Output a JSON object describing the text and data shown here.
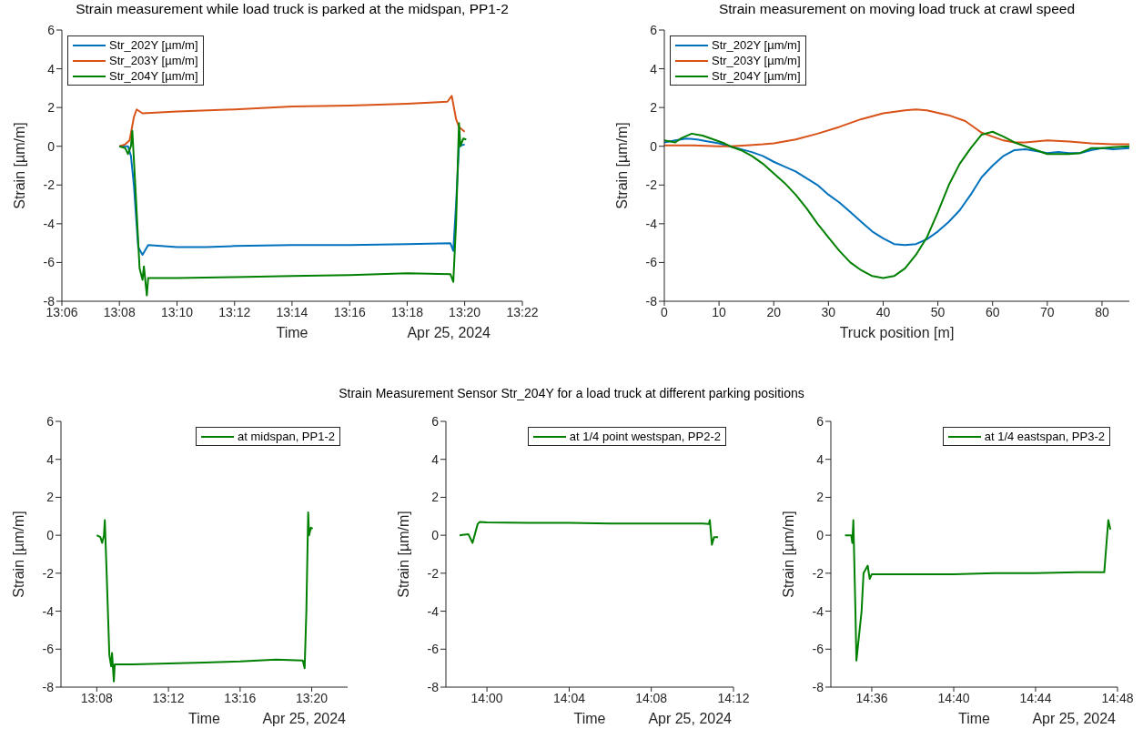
{
  "chart_data": [
    {
      "type": "line",
      "title": "Strain measurement while load truck is parked at the midspan, PP1-2",
      "xlabel": "Time",
      "ylabel": "Strain [µm/m]",
      "annotations": [
        "Apr 25, 2024"
      ],
      "legend": "top left",
      "xlim": [
        13.1,
        13.3667
      ],
      "xticks": [
        {
          "value": 13.1,
          "label": "13:06"
        },
        {
          "value": 13.1333,
          "label": "13:08"
        },
        {
          "value": 13.1667,
          "label": "13:10"
        },
        {
          "value": 13.2,
          "label": "13:12"
        },
        {
          "value": 13.2333,
          "label": "13:14"
        },
        {
          "value": 13.2667,
          "label": "13:16"
        },
        {
          "value": 13.3,
          "label": "13:18"
        },
        {
          "value": 13.3333,
          "label": "13:20"
        },
        {
          "value": 13.3667,
          "label": "13:22"
        }
      ],
      "ylim": [
        -8,
        6
      ],
      "yticks": [
        -8,
        -6,
        -4,
        -2,
        0,
        2,
        4,
        6
      ],
      "series": [
        {
          "name": "Str_202Y [µm/m]",
          "color": "#0072bd",
          "x": [
            13.1333,
            13.1383,
            13.14,
            13.1417,
            13.1442,
            13.1467,
            13.15,
            13.1667,
            13.1833,
            13.2,
            13.2333,
            13.2667,
            13.3,
            13.325,
            13.3267,
            13.3283,
            13.33,
            13.3333
          ],
          "values": [
            0,
            0,
            -0.5,
            -2,
            -5.2,
            -5.6,
            -5.1,
            -5.2,
            -5.2,
            -5.15,
            -5.1,
            -5.1,
            -5.05,
            -5,
            -5.4,
            -3,
            0,
            0.1
          ]
        },
        {
          "name": "Str_203Y [µm/m]",
          "color": "#d95319",
          "x": [
            13.1333,
            13.1367,
            13.1392,
            13.1417,
            13.1433,
            13.1467,
            13.1667,
            13.2,
            13.2333,
            13.2667,
            13.3,
            13.3233,
            13.3258,
            13.3283,
            13.33,
            13.3333
          ],
          "values": [
            0,
            0.1,
            0.3,
            1.5,
            1.9,
            1.7,
            1.8,
            1.9,
            2.05,
            2.1,
            2.2,
            2.3,
            2.6,
            1.4,
            1,
            0.75
          ]
        },
        {
          "name": "Str_204Y [µm/m]",
          "color": "#008000",
          "x": [
            13.1333,
            13.1367,
            13.1383,
            13.14,
            13.1408,
            13.1425,
            13.145,
            13.1467,
            13.1475,
            13.1492,
            13.15,
            13.1667,
            13.2,
            13.2333,
            13.2667,
            13.3,
            13.325,
            13.3267,
            13.3283,
            13.33,
            13.3308,
            13.3325,
            13.3342
          ],
          "values": [
            0,
            -0.1,
            -0.4,
            0,
            0.8,
            -2,
            -6.3,
            -6.9,
            -6.2,
            -7.7,
            -6.8,
            -6.8,
            -6.75,
            -6.7,
            -6.65,
            -6.55,
            -6.6,
            -7,
            -4,
            1.2,
            0,
            0.4,
            0.35
          ]
        }
      ]
    },
    {
      "type": "line",
      "title": "Strain measurement on moving load truck at crawl speed",
      "xlabel": "Truck position [m]",
      "ylabel": "Strain [µm/m]",
      "legend": "top left",
      "xlim": [
        0,
        85
      ],
      "xticks": [
        0,
        10,
        20,
        30,
        40,
        50,
        60,
        70,
        80
      ],
      "ylim": [
        -8,
        6
      ],
      "yticks": [
        -8,
        -6,
        -4,
        -2,
        0,
        2,
        4,
        6
      ],
      "series": [
        {
          "name": "Str_202Y [µm/m]",
          "color": "#0072bd",
          "x": [
            0,
            2,
            4,
            6,
            8,
            10,
            12,
            14,
            16,
            18,
            20,
            22,
            24,
            26,
            28,
            30,
            32,
            34,
            36,
            38,
            40,
            42,
            44,
            46,
            48,
            50,
            52,
            54,
            56,
            58,
            60,
            62,
            64,
            66,
            68,
            70,
            72,
            74,
            76,
            78,
            80,
            82,
            85
          ],
          "values": [
            0.2,
            0.3,
            0.4,
            0.35,
            0.25,
            0.15,
            0,
            -0.15,
            -0.3,
            -0.5,
            -0.8,
            -1.05,
            -1.3,
            -1.65,
            -2,
            -2.5,
            -2.9,
            -3.4,
            -3.9,
            -4.4,
            -4.75,
            -5.05,
            -5.1,
            -5.05,
            -4.8,
            -4.4,
            -3.9,
            -3.3,
            -2.5,
            -1.6,
            -1,
            -0.5,
            -0.2,
            -0.15,
            -0.25,
            -0.35,
            -0.3,
            -0.35,
            -0.35,
            -0.2,
            -0.1,
            -0.15,
            -0.1
          ]
        },
        {
          "name": "Str_203Y [µm/m]",
          "color": "#d95319",
          "x": [
            0,
            5,
            10,
            12,
            15,
            18,
            20,
            24,
            28,
            32,
            36,
            40,
            44,
            46,
            48,
            52,
            55,
            57,
            58,
            60,
            62,
            64,
            66,
            70,
            74,
            78,
            82,
            85
          ],
          "values": [
            0.05,
            0.05,
            0,
            0,
            0.05,
            0.1,
            0.15,
            0.35,
            0.65,
            1,
            1.4,
            1.7,
            1.85,
            1.9,
            1.85,
            1.6,
            1.3,
            0.9,
            0.7,
            0.5,
            0.3,
            0.2,
            0.2,
            0.3,
            0.25,
            0.15,
            0.1,
            0.1
          ]
        },
        {
          "name": "Str_204Y [µm/m]",
          "color": "#008000",
          "x": [
            0,
            2,
            3,
            5,
            7,
            9,
            11,
            12,
            14,
            16,
            18,
            20,
            22,
            24,
            26,
            28,
            30,
            32,
            34,
            36,
            38,
            40,
            42,
            44,
            46,
            48,
            50,
            52,
            54,
            56,
            58,
            60,
            62,
            64,
            66,
            68,
            70,
            72,
            74,
            76,
            78,
            80,
            82,
            85
          ],
          "values": [
            0.3,
            0.2,
            0.4,
            0.65,
            0.55,
            0.35,
            0.15,
            0,
            -0.2,
            -0.5,
            -0.9,
            -1.4,
            -1.9,
            -2.5,
            -3.2,
            -4,
            -4.7,
            -5.4,
            -6,
            -6.4,
            -6.7,
            -6.8,
            -6.7,
            -6.3,
            -5.6,
            -4.7,
            -3.4,
            -2,
            -0.9,
            -0.1,
            0.6,
            0.75,
            0.5,
            0.2,
            0,
            -0.2,
            -0.4,
            -0.4,
            -0.4,
            -0.35,
            -0.1,
            -0.1,
            -0.05,
            0
          ]
        }
      ]
    },
    {
      "type": "other",
      "title": "Strain Measurement Sensor Str_204Y for a load truck at different parking positions"
    },
    {
      "type": "line",
      "xlabel": "Time",
      "ylabel": "Strain [µm/m]",
      "annotations": [
        "Apr 25, 2024"
      ],
      "legend": "top right",
      "xlim": [
        13.1,
        13.3667
      ],
      "xticks": [
        {
          "value": 13.1333,
          "label": "13:08"
        },
        {
          "value": 13.2,
          "label": "13:12"
        },
        {
          "value": 13.2667,
          "label": "13:16"
        },
        {
          "value": 13.3333,
          "label": "13:20"
        }
      ],
      "ylim": [
        -8,
        6
      ],
      "yticks": [
        -8,
        -6,
        -4,
        -2,
        0,
        2,
        4,
        6
      ],
      "series": [
        {
          "name": "at midspan, PP1-2",
          "color": "#008000",
          "x": [
            13.1333,
            13.1367,
            13.1383,
            13.14,
            13.1408,
            13.1425,
            13.145,
            13.1467,
            13.1475,
            13.1492,
            13.15,
            13.1667,
            13.2,
            13.2333,
            13.2667,
            13.3,
            13.325,
            13.3267,
            13.3283,
            13.33,
            13.3308,
            13.3325,
            13.3342
          ],
          "values": [
            0,
            -0.1,
            -0.4,
            0,
            0.8,
            -2,
            -6.3,
            -6.9,
            -6.2,
            -7.7,
            -6.8,
            -6.8,
            -6.75,
            -6.7,
            -6.65,
            -6.55,
            -6.6,
            -7,
            -4,
            1.2,
            0,
            0.4,
            0.35
          ]
        }
      ]
    },
    {
      "type": "line",
      "xlabel": "Time",
      "ylabel": "Strain [µm/m]",
      "annotations": [
        "Apr 25, 2024"
      ],
      "legend": "top right",
      "xlim": [
        13.9667,
        14.2
      ],
      "xticks": [
        {
          "value": 14,
          "label": "14:00"
        },
        {
          "value": 14.0667,
          "label": "14:04"
        },
        {
          "value": 14.1333,
          "label": "14:08"
        },
        {
          "value": 14.2,
          "label": "14:12"
        }
      ],
      "ylim": [
        -8,
        6
      ],
      "yticks": [
        -8,
        -6,
        -4,
        -2,
        0,
        2,
        4,
        6
      ],
      "series": [
        {
          "name": "at 1/4 point westspan, PP2-2",
          "color": "#008000",
          "x": [
            13.9778,
            13.985,
            13.9883,
            13.9925,
            13.9942,
            14,
            14.0333,
            14.0667,
            14.1,
            14.1333,
            14.175,
            14.18,
            14.1808,
            14.1825,
            14.1842,
            14.1875
          ],
          "values": [
            0,
            0.05,
            -0.4,
            0.6,
            0.7,
            0.68,
            0.65,
            0.65,
            0.62,
            0.62,
            0.62,
            0.6,
            0.8,
            -0.5,
            -0.1,
            -0.1
          ]
        }
      ]
    },
    {
      "type": "line",
      "xlabel": "Time",
      "ylabel": "Strain [µm/m]",
      "annotations": [
        "Apr 25, 2024"
      ],
      "legend": "top right",
      "xlim": [
        14.5667,
        14.8
      ],
      "xticks": [
        {
          "value": 14.6,
          "label": "14:36"
        },
        {
          "value": 14.6667,
          "label": "14:40"
        },
        {
          "value": 14.7333,
          "label": "14:44"
        },
        {
          "value": 14.8,
          "label": "14:48"
        }
      ],
      "ylim": [
        -8,
        6
      ],
      "yticks": [
        -8,
        -6,
        -4,
        -2,
        0,
        2,
        4,
        6
      ],
      "series": [
        {
          "name": "at 1/4 eastspan, PP3-2",
          "color": "#008000",
          "x": [
            14.5782,
            14.5833,
            14.5842,
            14.585,
            14.5867,
            14.5875,
            14.5917,
            14.5933,
            14.5967,
            14.5983,
            14.6,
            14.6333,
            14.6667,
            14.7,
            14.7333,
            14.7667,
            14.7892,
            14.7925,
            14.7942
          ],
          "values": [
            0,
            0,
            -0.4,
            0.8,
            -4,
            -6.6,
            -4,
            -2,
            -1.6,
            -2.3,
            -2.05,
            -2.05,
            -2.05,
            -2,
            -2,
            -1.95,
            -1.95,
            0.8,
            0.3
          ]
        }
      ]
    }
  ]
}
